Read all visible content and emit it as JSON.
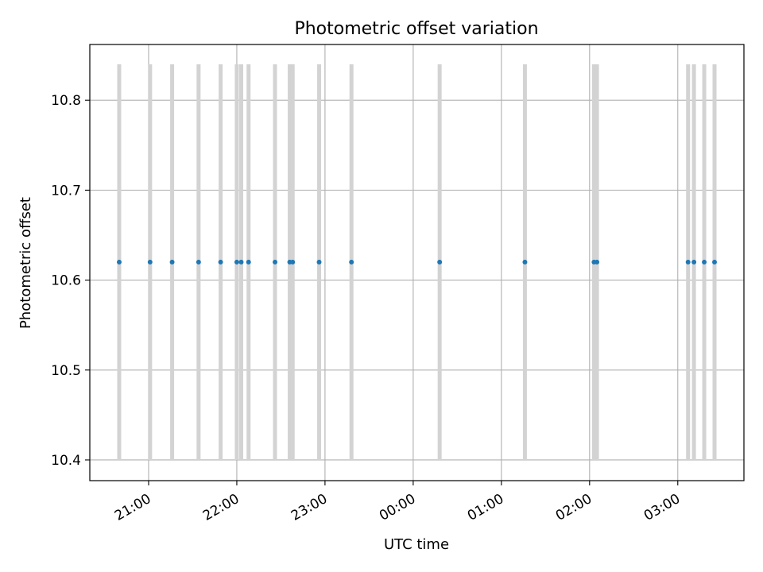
{
  "chart_data": {
    "type": "scatter",
    "title": "Photometric offset variation",
    "xlabel": "UTC time",
    "ylabel": "Photometric offset",
    "x_axis": {
      "kind": "time",
      "start": "20:20",
      "end": "03:45",
      "ticks": [
        "21:00",
        "22:00",
        "23:00",
        "00:00",
        "01:00",
        "02:00",
        "03:00"
      ],
      "tick_rotation_deg": 30
    },
    "ylim": [
      10.377,
      10.862
    ],
    "yticks": [
      "10.4",
      "10.5",
      "10.6",
      "10.7",
      "10.8"
    ],
    "grid": true,
    "series": [
      {
        "color": "#1f77b4",
        "x": [
          "20:40",
          "21:01",
          "21:16",
          "21:34",
          "21:49",
          "22:00",
          "22:03",
          "22:08",
          "22:26",
          "22:36",
          "22:38",
          "22:56",
          "23:18",
          "00:18",
          "01:16",
          "02:03",
          "02:05",
          "03:07",
          "03:11",
          "03:18",
          "03:25"
        ],
        "y": [
          10.62,
          10.62,
          10.62,
          10.62,
          10.62,
          10.62,
          10.62,
          10.62,
          10.62,
          10.62,
          10.62,
          10.62,
          10.62,
          10.62,
          10.62,
          10.62,
          10.62,
          10.62,
          10.62,
          10.62,
          10.62
        ]
      }
    ],
    "vertical_spans": {
      "color": "#d3d3d3",
      "y_range": [
        10.4,
        10.84
      ],
      "x": [
        "20:40",
        "21:01",
        "21:16",
        "21:34",
        "21:49",
        "22:00",
        "22:03",
        "22:08",
        "22:26",
        "22:36",
        "22:38",
        "22:56",
        "23:18",
        "00:18",
        "01:16",
        "02:03",
        "02:05",
        "03:07",
        "03:11",
        "03:18",
        "03:25"
      ]
    }
  }
}
